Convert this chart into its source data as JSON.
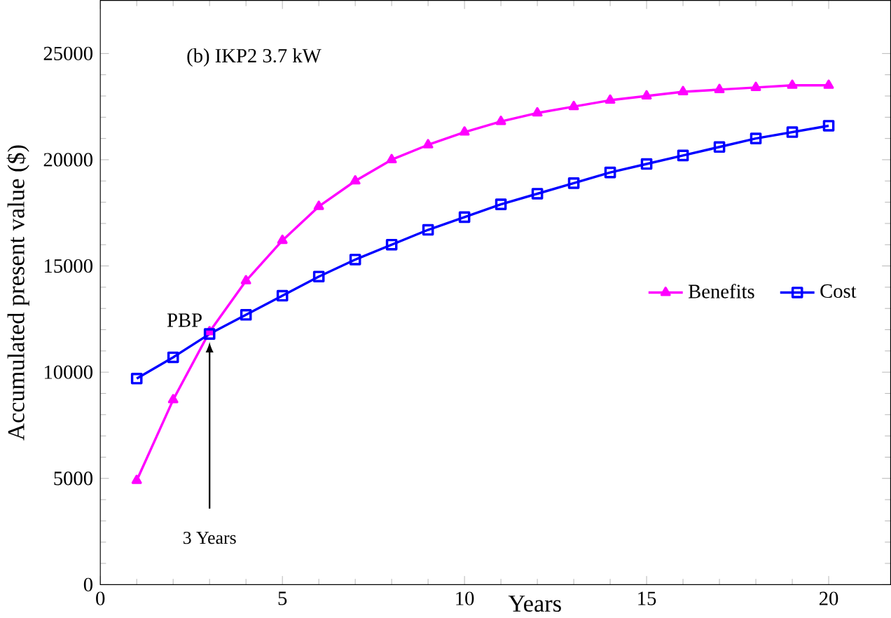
{
  "chart_data": {
    "type": "line",
    "title": "(b) IKP2 3.7 kW",
    "xlabel": "Years",
    "ylabel": "Accumulated present value ($)",
    "x": [
      1,
      2,
      3,
      4,
      5,
      6,
      7,
      8,
      9,
      10,
      11,
      12,
      13,
      14,
      15,
      16,
      17,
      18,
      19,
      20
    ],
    "series": [
      {
        "name": "Benefits",
        "color": "#ff00ff",
        "marker": "triangle",
        "values": [
          4900,
          8700,
          11900,
          14300,
          16200,
          17800,
          19000,
          20000,
          20700,
          21300,
          21800,
          22200,
          22500,
          22800,
          23000,
          23200,
          23300,
          23400,
          23500,
          23500
        ]
      },
      {
        "name": "Cost",
        "color": "#0000ff",
        "marker": "square",
        "values": [
          9700,
          10700,
          11800,
          12700,
          13600,
          14500,
          15300,
          16000,
          16700,
          17300,
          17900,
          18400,
          18900,
          19400,
          19800,
          20200,
          20600,
          21000,
          21300,
          21600
        ]
      }
    ],
    "annotations": [
      {
        "text": "PBP",
        "x": 3,
        "y": 11800
      },
      "3 Years"
    ],
    "xlim": [
      0,
      21.7
    ],
    "ylim": [
      0,
      27500
    ],
    "xticks": [
      0,
      5,
      10,
      15,
      20
    ],
    "yticks": [
      0,
      5000,
      10000,
      15000,
      20000,
      25000
    ],
    "grid": false,
    "legend": "right",
    "line_style": "solid"
  }
}
